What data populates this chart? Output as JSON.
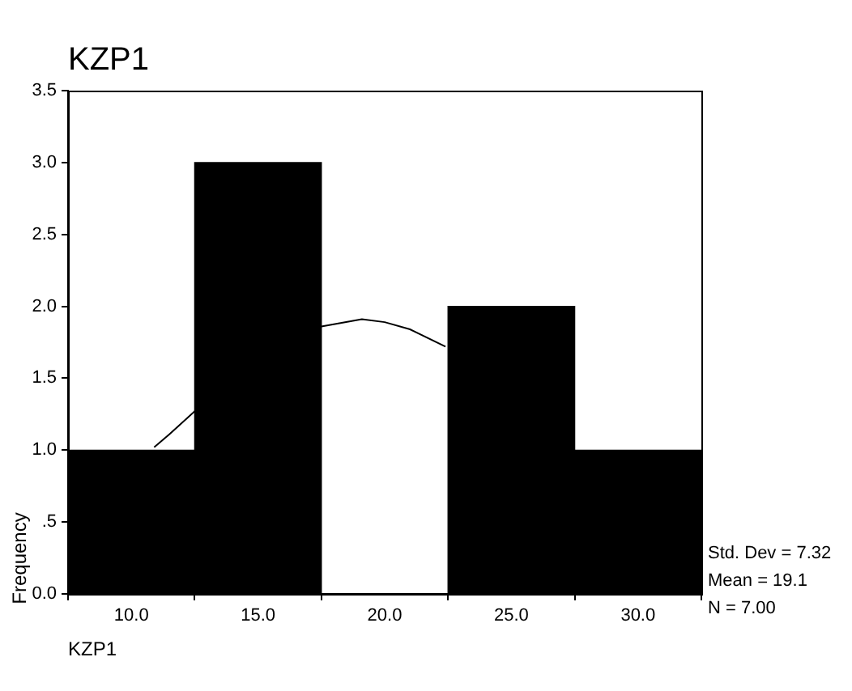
{
  "chart_data": {
    "type": "histogram",
    "title": "KZP1",
    "xlabel": "KZP1",
    "ylabel": "Frequency",
    "bins": [
      7.5,
      12.5,
      17.5,
      22.5,
      27.5,
      32.5
    ],
    "values": [
      1,
      3,
      0,
      2,
      1
    ],
    "color": "#000000",
    "xlim": [
      7.5,
      32.5
    ],
    "xticks": [
      {
        "value": 10,
        "label": "10.0"
      },
      {
        "value": 15,
        "label": "15.0"
      },
      {
        "value": 20,
        "label": "20.0"
      },
      {
        "value": 25,
        "label": "25.0"
      },
      {
        "value": 30,
        "label": "30.0"
      }
    ],
    "ylim": [
      0,
      3.5
    ],
    "yticks": [
      {
        "value": 0,
        "label": "0.0"
      },
      {
        "value": 0.5,
        "label": ".5"
      },
      {
        "value": 1,
        "label": "1.0"
      },
      {
        "value": 1.5,
        "label": "1.5"
      },
      {
        "value": 2,
        "label": "2.0"
      },
      {
        "value": 2.5,
        "label": "2.5"
      },
      {
        "value": 3,
        "label": "3.0"
      },
      {
        "value": 3.5,
        "label": "3.5"
      }
    ],
    "series": [
      {
        "type": "line",
        "color": "#000000",
        "marker": "none",
        "x": [
          10.9,
          11.5,
          12.5,
          15,
          17.5,
          19.1,
          20,
          21,
          22.4
        ],
        "values": [
          1.02,
          1.11,
          1.27,
          null,
          1.86,
          1.91,
          1.89,
          1.84,
          1.72
        ]
      }
    ],
    "annotations": [
      "Std. Dev = 7.32",
      "Mean = 19.1",
      "N = 7.00"
    ],
    "grid": false,
    "legend": false
  }
}
